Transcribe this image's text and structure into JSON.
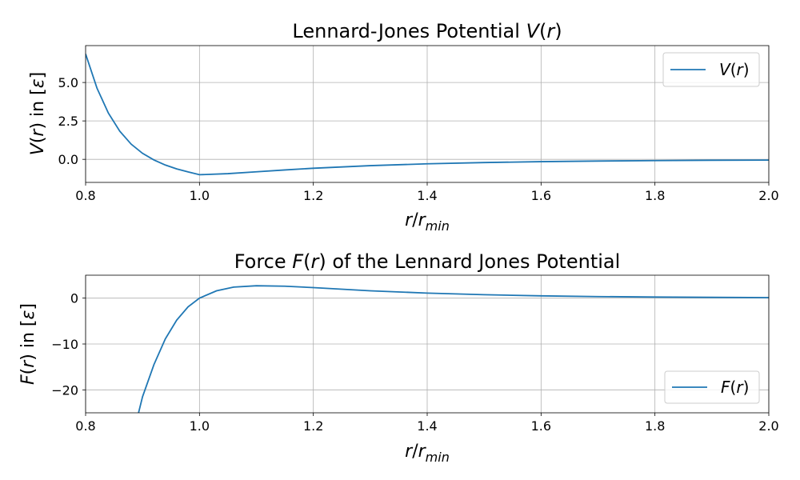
{
  "figure": {
    "background": "#ffffff",
    "line_color": "#1f77b4"
  },
  "chart_data": [
    {
      "type": "line",
      "title": "Lennard-Jones Potential V(r)",
      "xlabel": "r/r_min",
      "ylabel": "V(r) in [ε]",
      "xlim": [
        0.8,
        2.0
      ],
      "ylim": [
        -1.5,
        7.4
      ],
      "xticks": [
        "0.8",
        "1.0",
        "1.2",
        "1.4",
        "1.6",
        "1.8",
        "2.0"
      ],
      "yticks": [
        "0.0",
        "2.5",
        "5.0"
      ],
      "grid": true,
      "legend_position": "top-right",
      "series": [
        {
          "name": "V(r)",
          "color": "#1f77b4",
          "x": [
            0.8,
            0.82,
            0.84,
            0.86,
            0.88,
            0.9,
            0.92,
            0.94,
            0.96,
            0.98,
            1.0,
            1.05,
            1.1,
            1.15,
            1.2,
            1.3,
            1.4,
            1.5,
            1.6,
            1.7,
            1.8,
            1.9,
            2.0
          ],
          "values": [
            6.86,
            4.63,
            3.01,
            1.83,
            0.99,
            0.39,
            -0.04,
            -0.37,
            -0.62,
            -0.82,
            -1.0,
            -0.93,
            -0.81,
            -0.69,
            -0.58,
            -0.41,
            -0.29,
            -0.21,
            -0.15,
            -0.11,
            -0.08,
            -0.06,
            -0.05
          ]
        }
      ]
    },
    {
      "type": "line",
      "title": "Force F(r) of the Lennard Jones Potential",
      "xlabel": "r/r_min",
      "ylabel": "F(r) in [ε]",
      "xlim": [
        0.8,
        2.0
      ],
      "ylim": [
        -25,
        5
      ],
      "xticks": [
        "0.8",
        "1.0",
        "1.2",
        "1.4",
        "1.6",
        "1.8",
        "2.0"
      ],
      "yticks": [
        "−20",
        "−10",
        "0"
      ],
      "grid": true,
      "legend_position": "bottom-right",
      "series": [
        {
          "name": "F(r)",
          "color": "#1f77b4",
          "x": [
            0.893,
            0.9,
            0.92,
            0.94,
            0.96,
            0.98,
            1.0,
            1.03,
            1.06,
            1.1,
            1.15,
            1.2,
            1.3,
            1.4,
            1.5,
            1.6,
            1.7,
            1.8,
            1.9,
            2.0
          ],
          "values": [
            -25.0,
            -21.5,
            -14.5,
            -8.9,
            -4.8,
            -1.9,
            0.0,
            1.6,
            2.4,
            2.7,
            2.6,
            2.3,
            1.6,
            1.1,
            0.75,
            0.5,
            0.34,
            0.24,
            0.17,
            0.12
          ]
        }
      ]
    }
  ]
}
